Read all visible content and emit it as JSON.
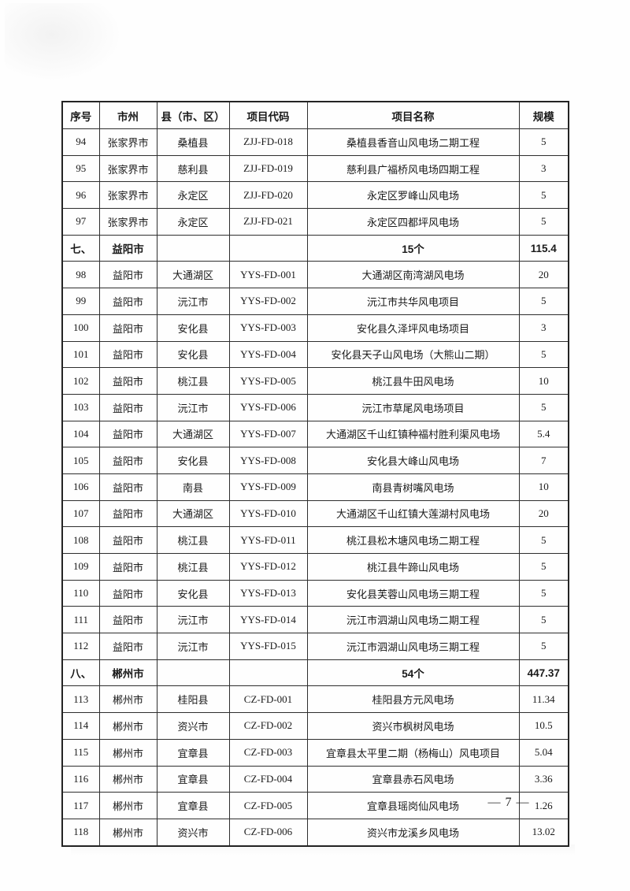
{
  "page": {
    "number_label": "— 7 —"
  },
  "colors": {
    "background": "#ffffff",
    "border": "#2e2e2e",
    "text": "#1a1a1a"
  },
  "table": {
    "columns": [
      {
        "key": "no",
        "label": "序号"
      },
      {
        "key": "city",
        "label": "市州"
      },
      {
        "key": "county",
        "label": "县（市、区）"
      },
      {
        "key": "code",
        "label": "项目代码"
      },
      {
        "key": "name",
        "label": "项目名称"
      },
      {
        "key": "scale",
        "label": "规模"
      }
    ],
    "rows": [
      {
        "type": "data",
        "no": "94",
        "city": "张家界市",
        "county": "桑植县",
        "code": "ZJJ-FD-018",
        "name": "桑植县香音山风电场二期工程",
        "scale": "5"
      },
      {
        "type": "data",
        "no": "95",
        "city": "张家界市",
        "county": "慈利县",
        "code": "ZJJ-FD-019",
        "name": "慈利县广福桥风电场四期工程",
        "scale": "3"
      },
      {
        "type": "data",
        "no": "96",
        "city": "张家界市",
        "county": "永定区",
        "code": "ZJJ-FD-020",
        "name": "永定区罗峰山风电场",
        "scale": "5"
      },
      {
        "type": "data",
        "no": "97",
        "city": "张家界市",
        "county": "永定区",
        "code": "ZJJ-FD-021",
        "name": "永定区四都坪风电场",
        "scale": "5"
      },
      {
        "type": "section",
        "no": "七、",
        "city": "益阳市",
        "county": "",
        "code": "",
        "name": "15个",
        "scale": "115.4"
      },
      {
        "type": "data",
        "no": "98",
        "city": "益阳市",
        "county": "大通湖区",
        "code": "YYS-FD-001",
        "name": "大通湖区南湾湖风电场",
        "scale": "20"
      },
      {
        "type": "data",
        "no": "99",
        "city": "益阳市",
        "county": "沅江市",
        "code": "YYS-FD-002",
        "name": "沅江市共华风电项目",
        "scale": "5"
      },
      {
        "type": "data",
        "no": "100",
        "city": "益阳市",
        "county": "安化县",
        "code": "YYS-FD-003",
        "name": "安化县久泽坪风电场项目",
        "scale": "3"
      },
      {
        "type": "data",
        "no": "101",
        "city": "益阳市",
        "county": "安化县",
        "code": "YYS-FD-004",
        "name": "安化县天子山风电场（大熊山二期）",
        "scale": "5"
      },
      {
        "type": "data",
        "no": "102",
        "city": "益阳市",
        "county": "桃江县",
        "code": "YYS-FD-005",
        "name": "桃江县牛田风电场",
        "scale": "10"
      },
      {
        "type": "data",
        "no": "103",
        "city": "益阳市",
        "county": "沅江市",
        "code": "YYS-FD-006",
        "name": "沅江市草尾风电场项目",
        "scale": "5"
      },
      {
        "type": "data",
        "no": "104",
        "city": "益阳市",
        "county": "大通湖区",
        "code": "YYS-FD-007",
        "name": "大通湖区千山红镇种福村胜利渠风电场",
        "scale": "5.4"
      },
      {
        "type": "data",
        "no": "105",
        "city": "益阳市",
        "county": "安化县",
        "code": "YYS-FD-008",
        "name": "安化县大峰山风电场",
        "scale": "7"
      },
      {
        "type": "data",
        "no": "106",
        "city": "益阳市",
        "county": "南县",
        "code": "YYS-FD-009",
        "name": "南县青树嘴风电场",
        "scale": "10"
      },
      {
        "type": "data",
        "no": "107",
        "city": "益阳市",
        "county": "大通湖区",
        "code": "YYS-FD-010",
        "name": "大通湖区千山红镇大莲湖村风电场",
        "scale": "20"
      },
      {
        "type": "data",
        "no": "108",
        "city": "益阳市",
        "county": "桃江县",
        "code": "YYS-FD-011",
        "name": "桃江县松木塘风电场二期工程",
        "scale": "5"
      },
      {
        "type": "data",
        "no": "109",
        "city": "益阳市",
        "county": "桃江县",
        "code": "YYS-FD-012",
        "name": "桃江县牛蹄山风电场",
        "scale": "5"
      },
      {
        "type": "data",
        "no": "110",
        "city": "益阳市",
        "county": "安化县",
        "code": "YYS-FD-013",
        "name": "安化县芙蓉山风电场三期工程",
        "scale": "5"
      },
      {
        "type": "data",
        "no": "111",
        "city": "益阳市",
        "county": "沅江市",
        "code": "YYS-FD-014",
        "name": "沅江市泗湖山风电场二期工程",
        "scale": "5"
      },
      {
        "type": "data",
        "no": "112",
        "city": "益阳市",
        "county": "沅江市",
        "code": "YYS-FD-015",
        "name": "沅江市泗湖山风电场三期工程",
        "scale": "5"
      },
      {
        "type": "section",
        "no": "八、",
        "city": "郴州市",
        "county": "",
        "code": "",
        "name": "54个",
        "scale": "447.37"
      },
      {
        "type": "data",
        "no": "113",
        "city": "郴州市",
        "county": "桂阳县",
        "code": "CZ-FD-001",
        "name": "桂阳县方元风电场",
        "scale": "11.34"
      },
      {
        "type": "data",
        "no": "114",
        "city": "郴州市",
        "county": "资兴市",
        "code": "CZ-FD-002",
        "name": "资兴市枫树风电场",
        "scale": "10.5"
      },
      {
        "type": "data",
        "no": "115",
        "city": "郴州市",
        "county": "宜章县",
        "code": "CZ-FD-003",
        "name": "宜章县太平里二期（杨梅山）风电项目",
        "scale": "5.04"
      },
      {
        "type": "data",
        "no": "116",
        "city": "郴州市",
        "county": "宜章县",
        "code": "CZ-FD-004",
        "name": "宜章县赤石风电场",
        "scale": "3.36"
      },
      {
        "type": "data",
        "no": "117",
        "city": "郴州市",
        "county": "宜章县",
        "code": "CZ-FD-005",
        "name": "宜章县瑶岗仙风电场",
        "scale": "1.26"
      },
      {
        "type": "data",
        "no": "118",
        "city": "郴州市",
        "county": "资兴市",
        "code": "CZ-FD-006",
        "name": "资兴市龙溪乡风电场",
        "scale": "13.02"
      }
    ]
  }
}
